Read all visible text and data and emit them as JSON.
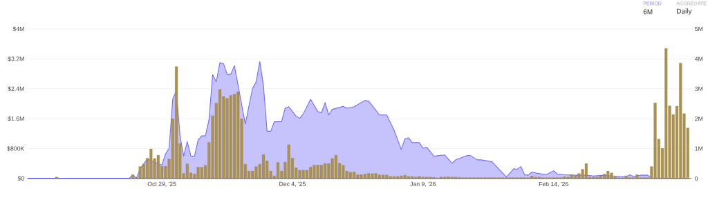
{
  "chart_data": {
    "type": "bar",
    "xlim": [
      "2025-09-22",
      "2026-03-24"
    ],
    "xticks": [
      {
        "value": "2025-10-29",
        "label": "Oct 29, '25"
      },
      {
        "value": "2025-12-04",
        "label": "Dec 4, '25"
      },
      {
        "value": "2026-01-09",
        "label": "Jan 9, '26"
      },
      {
        "value": "2026-02-14",
        "label": "Feb 14, '26"
      }
    ],
    "ylim": [
      0,
      4000000
    ],
    "yticks": [
      {
        "value": 0,
        "label": "$0"
      },
      {
        "value": 800000,
        "label": "$800K"
      },
      {
        "value": 1600000,
        "label": "$1.6M"
      },
      {
        "value": 2400000,
        "label": "$2.4M"
      },
      {
        "value": 3200000,
        "label": "$3.2M"
      },
      {
        "value": 4000000,
        "label": "$4M"
      }
    ],
    "y2lim": [
      0,
      5000000
    ],
    "y2ticks": [
      {
        "value": 0,
        "label": "0"
      },
      {
        "value": 1000000,
        "label": "1M"
      },
      {
        "value": 2000000,
        "label": "2M"
      },
      {
        "value": 3000000,
        "label": "3M"
      },
      {
        "value": 4000000,
        "label": "4M"
      },
      {
        "value": 5000000,
        "label": "5M"
      }
    ],
    "grid": "y",
    "annotations": [
      "PERIOD",
      "6M",
      "AGGREGATE",
      "Daily"
    ],
    "series": [
      {
        "type": "area",
        "color": "#c6c2fb",
        "x": [
          "2025-09-22",
          "2025-10-20",
          "2025-10-21",
          "2025-10-22",
          "2025-10-23",
          "2025-10-25",
          "2025-10-26",
          "2025-10-27",
          "2025-10-29",
          "2025-10-30",
          "2025-10-31",
          "2025-11-01",
          "2025-11-02",
          "2025-11-03",
          "2025-11-04",
          "2025-11-05",
          "2025-11-06",
          "2025-11-07",
          "2025-11-08",
          "2025-11-09",
          "2025-11-10",
          "2025-11-11",
          "2025-11-12",
          "2025-11-13",
          "2025-11-14",
          "2025-11-15",
          "2025-11-16",
          "2025-11-17",
          "2025-11-18",
          "2025-11-19",
          "2025-11-21",
          "2025-11-23",
          "2025-11-24",
          "2025-11-25",
          "2025-11-26",
          "2025-11-27",
          "2025-11-28",
          "2025-11-29",
          "2025-12-01",
          "2025-12-02",
          "2025-12-03",
          "2025-12-05",
          "2025-12-06",
          "2025-12-07",
          "2025-12-09",
          "2025-12-11",
          "2025-12-12",
          "2025-12-13",
          "2025-12-14",
          "2025-12-15",
          "2025-12-18",
          "2025-12-19",
          "2025-12-21",
          "2025-12-24",
          "2025-12-25",
          "2025-12-26",
          "2025-12-28",
          "2025-12-30",
          "2026-01-01",
          "2026-01-03",
          "2026-01-04",
          "2026-01-05",
          "2026-01-06",
          "2026-01-08",
          "2026-01-09",
          "2026-01-10",
          "2026-01-12",
          "2026-01-13",
          "2026-01-15",
          "2026-01-17",
          "2026-01-18",
          "2026-01-21",
          "2026-01-22",
          "2026-01-24",
          "2026-01-25",
          "2026-01-28",
          "2026-02-01",
          "2026-02-03",
          "2026-02-04",
          "2026-02-05",
          "2026-02-06",
          "2026-02-07",
          "2026-02-08",
          "2026-02-09",
          "2026-02-11",
          "2026-02-12",
          "2026-02-14",
          "2026-02-15",
          "2026-02-17",
          "2026-02-20",
          "2026-02-22",
          "2026-02-23",
          "2026-02-25",
          "2026-02-28",
          "2026-03-02",
          "2026-03-06",
          "2026-03-07",
          "2026-03-08",
          "2026-03-10",
          "2026-03-12",
          "2026-03-13",
          "2026-03-23"
        ],
        "values": [
          10000,
          10000,
          90000,
          10000,
          260000,
          530000,
          470000,
          440000,
          360000,
          660000,
          810000,
          2130000,
          2350000,
          1150000,
          600000,
          990000,
          600000,
          600000,
          1030000,
          1140000,
          1140000,
          1580000,
          2780000,
          2590000,
          3100000,
          3070000,
          2790000,
          2790000,
          3020000,
          2500000,
          1460000,
          2410000,
          2590000,
          3130000,
          2500000,
          1270000,
          1260000,
          1520000,
          1520000,
          1880000,
          1920000,
          1670000,
          1610000,
          1730000,
          2120000,
          1790000,
          1760000,
          2030000,
          1700000,
          1850000,
          1930000,
          1880000,
          1920000,
          2090000,
          2070000,
          1950000,
          1700000,
          1700000,
          1300000,
          780000,
          1060000,
          1090000,
          960000,
          960000,
          810000,
          840000,
          600000,
          610000,
          630000,
          410000,
          500000,
          610000,
          620000,
          500000,
          500000,
          450000,
          40000,
          260000,
          250000,
          320000,
          100000,
          90000,
          170000,
          150000,
          120000,
          100000,
          210000,
          120000,
          100000,
          90000,
          90000,
          90000,
          70000,
          90000,
          70000,
          40000,
          100000,
          50000,
          90000,
          90000,
          10000,
          10000
        ]
      },
      {
        "axis": "y2",
        "color": "#ab914e",
        "x": [
          "2025-09-30",
          "2025-10-21",
          "2025-10-22",
          "2025-10-23",
          "2025-10-24",
          "2025-10-25",
          "2025-10-26",
          "2025-10-27",
          "2025-10-28",
          "2025-10-29",
          "2025-10-30",
          "2025-10-31",
          "2025-11-01",
          "2025-11-02",
          "2025-11-03",
          "2025-11-04",
          "2025-11-05",
          "2025-11-06",
          "2025-11-07",
          "2025-11-08",
          "2025-11-09",
          "2025-11-10",
          "2025-11-11",
          "2025-11-12",
          "2025-11-13",
          "2025-11-14",
          "2025-11-15",
          "2025-11-16",
          "2025-11-17",
          "2025-11-18",
          "2025-11-19",
          "2025-11-20",
          "2025-11-21",
          "2025-11-22",
          "2025-11-23",
          "2025-11-24",
          "2025-11-25",
          "2025-11-26",
          "2025-11-27",
          "2025-11-28",
          "2025-11-29",
          "2025-11-30",
          "2025-12-01",
          "2025-12-02",
          "2025-12-03",
          "2025-12-04",
          "2025-12-05",
          "2025-12-06",
          "2025-12-07",
          "2025-12-08",
          "2025-12-09",
          "2025-12-10",
          "2025-12-11",
          "2025-12-12",
          "2025-12-13",
          "2025-12-14",
          "2025-12-15",
          "2025-12-16",
          "2025-12-17",
          "2025-12-18",
          "2025-12-19",
          "2025-12-20",
          "2025-12-21",
          "2025-12-22",
          "2025-12-23",
          "2025-12-24",
          "2025-12-25",
          "2025-12-26",
          "2025-12-27",
          "2025-12-28",
          "2025-12-29",
          "2025-12-30",
          "2025-12-31",
          "2026-01-01",
          "2026-01-02",
          "2026-01-03",
          "2026-01-04",
          "2026-01-05",
          "2026-01-06",
          "2026-01-07",
          "2026-01-08",
          "2026-01-09",
          "2026-01-10",
          "2026-01-11",
          "2026-01-12",
          "2026-01-13",
          "2026-01-14",
          "2026-01-15",
          "2026-01-16",
          "2026-01-17",
          "2026-01-18",
          "2026-01-19",
          "2026-01-20",
          "2026-01-21",
          "2026-01-22",
          "2026-01-23",
          "2026-01-24",
          "2026-01-25",
          "2026-01-26",
          "2026-01-27",
          "2026-01-28",
          "2026-01-29",
          "2026-01-30",
          "2026-01-31",
          "2026-02-01",
          "2026-02-02",
          "2026-02-03",
          "2026-02-04",
          "2026-02-05",
          "2026-02-06",
          "2026-02-07",
          "2026-02-08",
          "2026-02-09",
          "2026-02-10",
          "2026-02-11",
          "2026-02-12",
          "2026-02-13",
          "2026-02-14",
          "2026-02-15",
          "2026-02-16",
          "2026-02-17",
          "2026-02-18",
          "2026-02-19",
          "2026-02-20",
          "2026-02-21",
          "2026-02-22",
          "2026-02-23",
          "2026-02-24",
          "2026-02-25",
          "2026-02-26",
          "2026-02-27",
          "2026-02-28",
          "2026-03-01",
          "2026-03-02",
          "2026-03-03",
          "2026-03-04",
          "2026-03-05",
          "2026-03-06",
          "2026-03-07",
          "2026-03-08",
          "2026-03-09",
          "2026-03-10",
          "2026-03-11",
          "2026-03-12",
          "2026-03-13",
          "2026-03-14",
          "2026-03-15",
          "2026-03-16",
          "2026-03-17",
          "2026-03-18",
          "2026-03-19",
          "2026-03-20",
          "2026-03-21",
          "2026-03-22",
          "2026-03-23"
        ],
        "values": [
          50000,
          130000,
          20000,
          400000,
          480000,
          680000,
          990000,
          670000,
          780000,
          410000,
          410000,
          650000,
          2000000,
          3740000,
          1170000,
          170000,
          490000,
          190000,
          150000,
          380000,
          380000,
          440000,
          1210000,
          2100000,
          2520000,
          2980000,
          2740000,
          2680000,
          2780000,
          2820000,
          2900000,
          2000000,
          480000,
          250000,
          250000,
          400000,
          480000,
          800000,
          590000,
          250000,
          90000,
          540000,
          250000,
          550000,
          1130000,
          680000,
          360000,
          280000,
          280000,
          280000,
          380000,
          450000,
          450000,
          450000,
          500000,
          500000,
          670000,
          780000,
          510000,
          440000,
          250000,
          210000,
          220000,
          130000,
          130000,
          150000,
          170000,
          160000,
          170000,
          120000,
          120000,
          120000,
          70000,
          70000,
          70000,
          90000,
          110000,
          70000,
          70000,
          50000,
          70000,
          50000,
          50000,
          50000,
          40000,
          20000,
          50000,
          50000,
          60000,
          50000,
          50000,
          40000,
          30000,
          30000,
          30000,
          30000,
          30000,
          30000,
          30000,
          30000,
          30000,
          30000,
          30000,
          30000,
          30000,
          30000,
          30000,
          30000,
          30000,
          30000,
          30000,
          90000,
          50000,
          50000,
          30000,
          30000,
          30000,
          30000,
          30000,
          30000,
          60000,
          50000,
          130000,
          90000,
          170000,
          310000,
          500000,
          50000,
          50000,
          50000,
          90000,
          150000,
          250000,
          190000,
          50000,
          30000,
          30000,
          90000,
          30000,
          30000,
          130000,
          30000,
          30000,
          30000,
          400000,
          2530000,
          1320000,
          1010000,
          4350000,
          2430000,
          2140000,
          2420000,
          3860000,
          2170000,
          1690000
        ]
      }
    ]
  }
}
